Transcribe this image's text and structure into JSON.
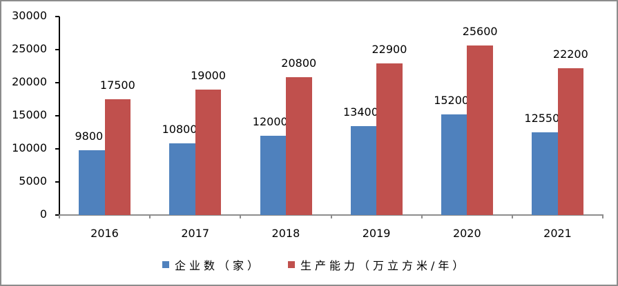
{
  "chart_data": {
    "type": "bar",
    "title": "",
    "xlabel": "",
    "ylabel": "",
    "ylim": [
      0,
      30000
    ],
    "yticks": [
      "0",
      "5000",
      "10000",
      "15000",
      "20000",
      "25000",
      "30000"
    ],
    "categories": [
      "2016",
      "2017",
      "2018",
      "2019",
      "2020",
      "2021"
    ],
    "series": [
      {
        "name": "企业数（家）",
        "color": "#4f81bd",
        "values": [
          9800,
          10800,
          12000,
          13400,
          15200,
          12550
        ]
      },
      {
        "name": "生产能力（万立方米/年）",
        "color": "#c0504d",
        "values": [
          17500,
          19000,
          20800,
          22900,
          25600,
          22200
        ]
      }
    ],
    "grid": false,
    "legend_position": "bottom",
    "data_labels": true
  },
  "legend": {
    "items": [
      {
        "label": "企业数（家）",
        "color": "#4f81bd"
      },
      {
        "label": "生产能力（万立方米/年）",
        "color": "#c0504d"
      }
    ]
  }
}
